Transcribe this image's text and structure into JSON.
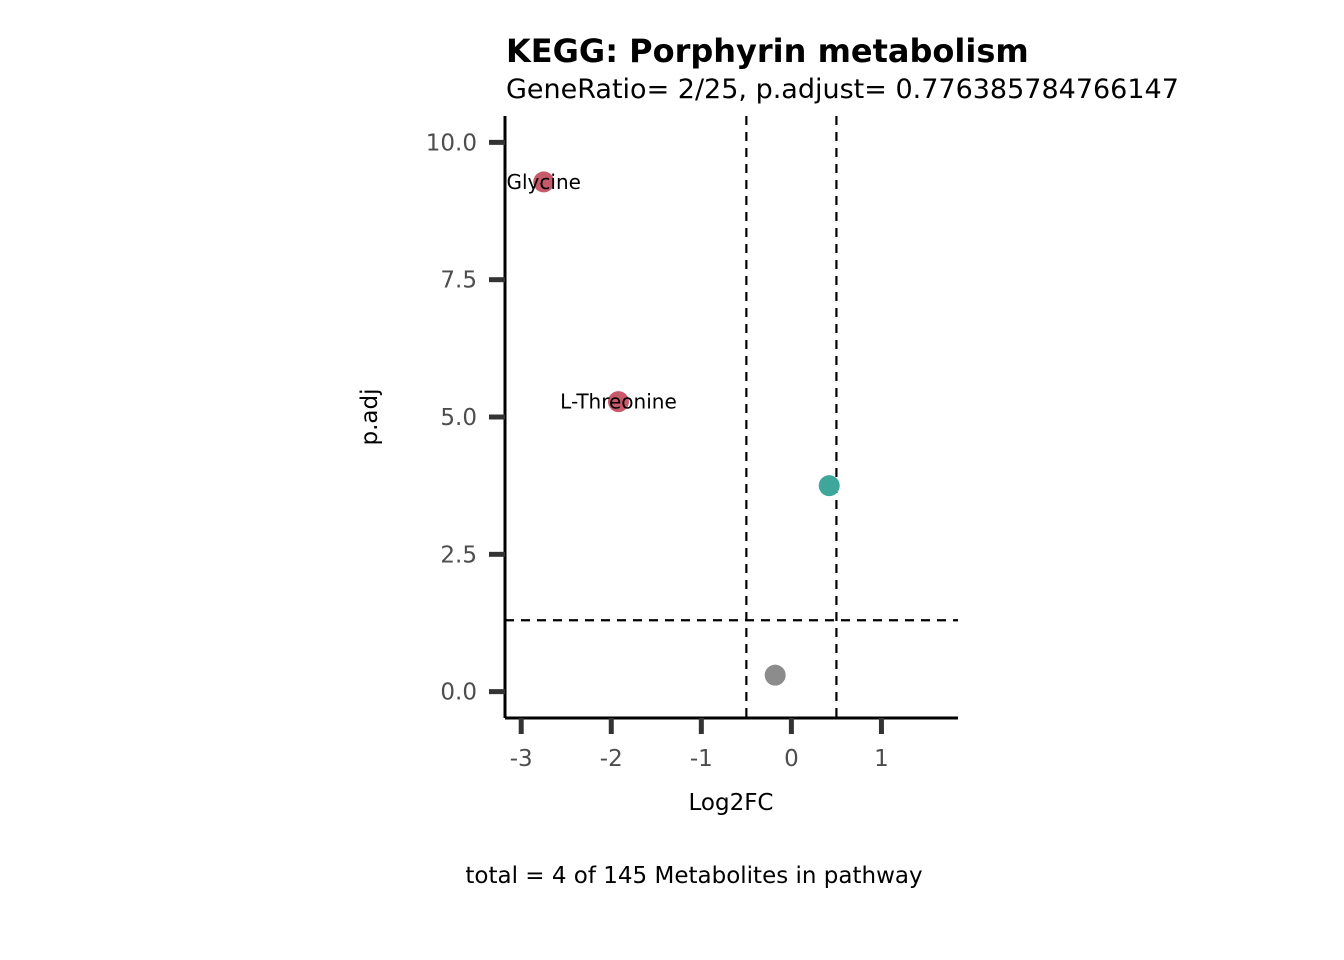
{
  "chart_data": {
    "type": "scatter",
    "title": "KEGG: Porphyrin metabolism",
    "subtitle": "GeneRatio= 2/25, p.adjust= 0.776385784766147",
    "xlabel": "Log2FC",
    "ylabel": "p.adj",
    "caption": "total = 4 of 145 Metabolites in pathway",
    "xlim": [
      -3.18,
      1.85
    ],
    "ylim": [
      -0.48,
      10.48
    ],
    "x_ticks": [
      -3,
      -2,
      -1,
      0,
      1
    ],
    "x_tick_labels": [
      "-3",
      "-2",
      "-1",
      "0",
      "1"
    ],
    "y_ticks": [
      0,
      2.5,
      5,
      7.5,
      10
    ],
    "y_tick_labels": [
      "0.0",
      "2.5",
      "5.0",
      "7.5",
      "10.0"
    ],
    "reference_lines": {
      "vertical": [
        -0.5,
        0.5
      ],
      "horizontal": [
        1.3
      ]
    },
    "grid": false,
    "colors": {
      "down": "#c75a6a",
      "up": "#3ea69a",
      "not_significant": "#8c8c8c"
    },
    "points": [
      {
        "x": -2.75,
        "y": 9.28,
        "label": "Glycine",
        "group": "down"
      },
      {
        "x": -1.92,
        "y": 5.28,
        "label": "L-Threonine",
        "group": "down"
      },
      {
        "x": 0.42,
        "y": 3.75,
        "label": "",
        "group": "up"
      },
      {
        "x": -0.18,
        "y": 0.3,
        "label": "",
        "group": "not_significant"
      }
    ]
  }
}
